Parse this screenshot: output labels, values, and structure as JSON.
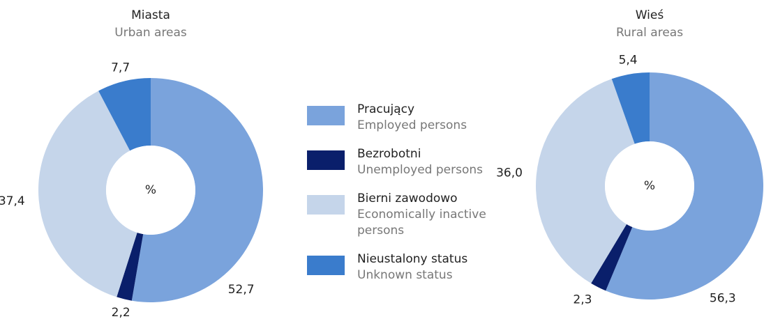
{
  "chart_data": [
    {
      "type": "pie",
      "title": "Miasta",
      "subtitle": "Urban areas",
      "center_label": "%",
      "categories": [
        "Pracujący",
        "Bezrobotni",
        "Bierni zawodowo",
        "Nieustalony status"
      ],
      "categories_en": [
        "Employed persons",
        "Unemployed persons",
        "Economically inactive persons",
        "Unknown status"
      ],
      "values": [
        52.7,
        2.2,
        37.4,
        7.7
      ],
      "value_labels": [
        "52,7",
        "2,2",
        "37,4",
        "7,7"
      ],
      "colors": [
        "#7aa3dc",
        "#0a1f6b",
        "#c5d5ea",
        "#3a7ccc"
      ]
    },
    {
      "type": "pie",
      "title": "Wieś",
      "subtitle": "Rural areas",
      "center_label": "%",
      "categories": [
        "Pracujący",
        "Bezrobotni",
        "Bierni zawodowo",
        "Nieustalony status"
      ],
      "categories_en": [
        "Employed persons",
        "Unemployed persons",
        "Economically inactive persons",
        "Unknown status"
      ],
      "values": [
        56.3,
        2.3,
        36.0,
        5.4
      ],
      "value_labels": [
        "56,3",
        "2,3",
        "36,0",
        "5,4"
      ],
      "colors": [
        "#7aa3dc",
        "#0a1f6b",
        "#c5d5ea",
        "#3a7ccc"
      ]
    }
  ]
}
